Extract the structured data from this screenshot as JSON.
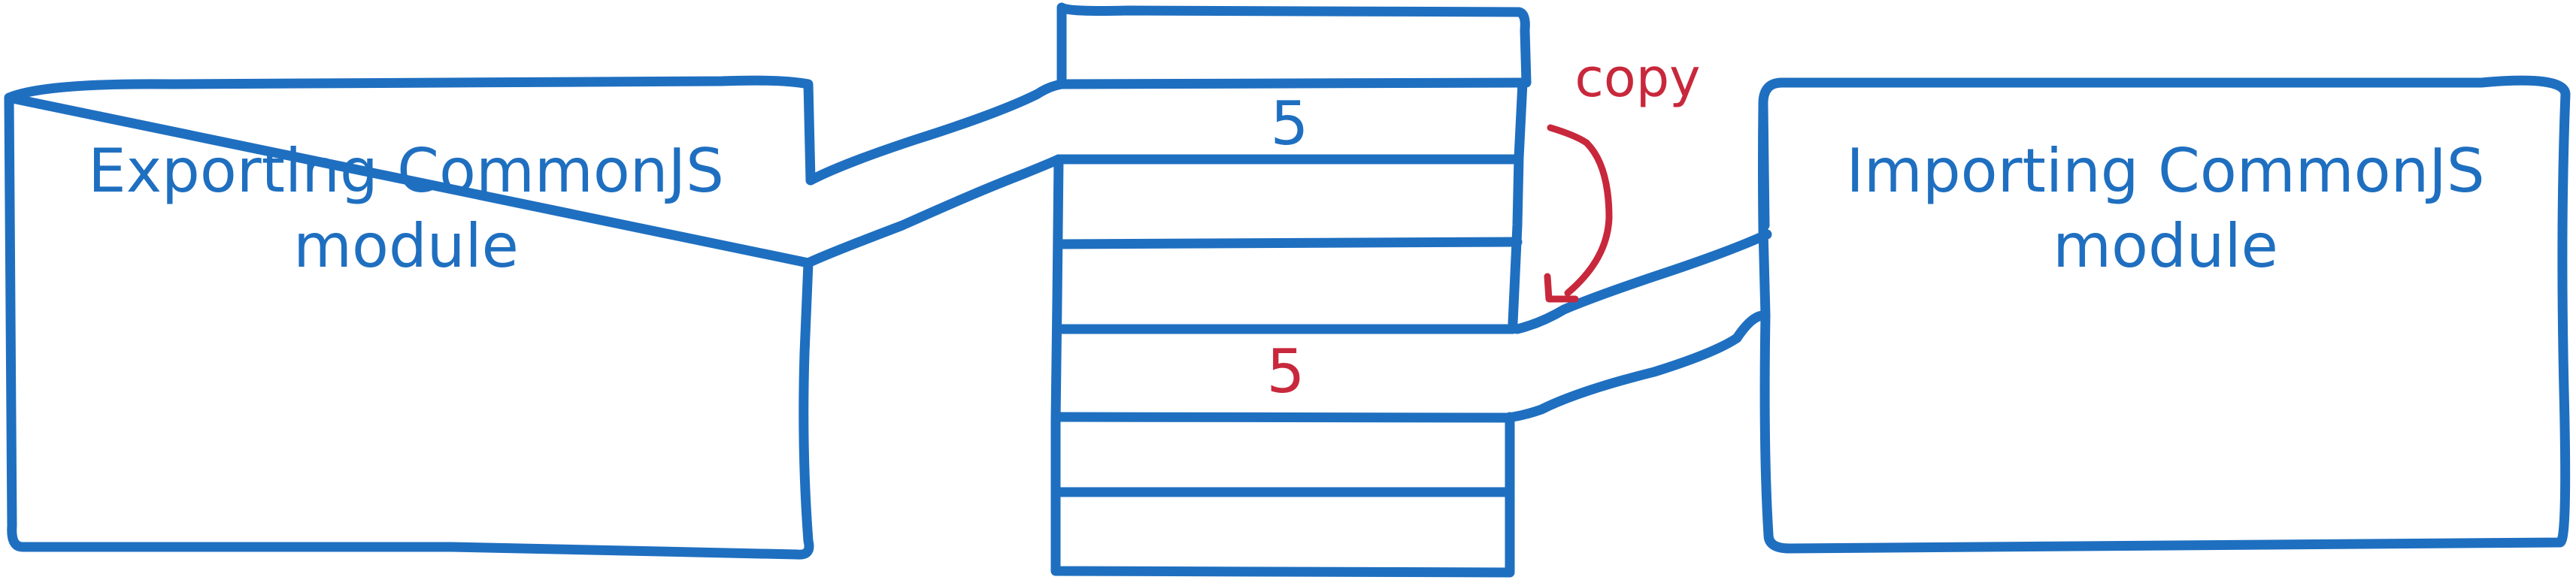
{
  "exporting_module": {
    "line1": "Exporting CommonJS",
    "line2": "module"
  },
  "importing_module": {
    "line1": "Importing CommonJS",
    "line2": "module"
  },
  "memory": {
    "exported_value": "5",
    "imported_value": "5"
  },
  "copy_label": "copy",
  "colors": {
    "blue": "#1f6fc0",
    "red": "#c8283c"
  }
}
